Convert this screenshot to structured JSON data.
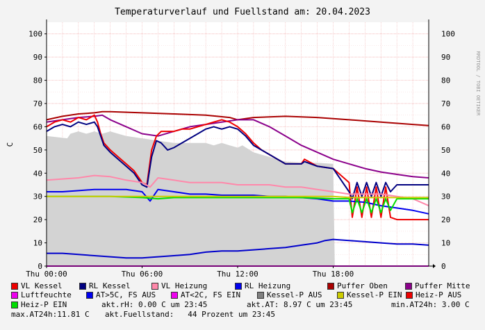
{
  "title": "Temperaturverlauf und Fuellstand am: 20.04.2023",
  "watermark": "RRDTOOL / TOBI OETIKER",
  "chart_data": {
    "type": "line",
    "title": "Temperaturverlauf und Fuellstand am: 20.04.2023",
    "ylabel": "C",
    "ylim": [
      0,
      105
    ],
    "xlim": [
      0,
      24
    ],
    "grid": true,
    "y_ticks": [
      0,
      10,
      20,
      30,
      40,
      50,
      60,
      70,
      80,
      90,
      100
    ],
    "x_ticks": [
      {
        "hour": 0,
        "label": "Thu 00:00"
      },
      {
        "hour": 6,
        "label": "Thu 06:00"
      },
      {
        "hour": 12,
        "label": "Thu 12:00"
      },
      {
        "hour": 18,
        "label": "Thu 18:00"
      }
    ],
    "area": {
      "name": "Fuellstand",
      "color": "#d3d3d3",
      "x": [
        0,
        1.3,
        1.5,
        2.0,
        2.5,
        3.0,
        3.5,
        4.0,
        4.5,
        5.0,
        6.0,
        7.0,
        8.0,
        9.0,
        10.0,
        10.5,
        11.0,
        11.5,
        12.0,
        12.3,
        13.0,
        14.0,
        15.0,
        16.0,
        17.0,
        18.0,
        18.1
      ],
      "y": [
        56,
        55,
        57,
        58,
        57,
        58,
        57,
        58,
        57,
        56,
        55,
        54,
        53,
        53,
        53,
        52,
        53,
        52,
        51,
        52,
        49,
        47,
        45,
        44.5,
        44.5,
        44,
        0
      ]
    },
    "series": [
      {
        "name": "Puffer Oben",
        "color": "#aa0000",
        "x": [
          0,
          1,
          2,
          3,
          3.5,
          4,
          6,
          8,
          10,
          11.5,
          12,
          13,
          15,
          17,
          19,
          21,
          23,
          24
        ],
        "y": [
          63,
          64.5,
          65.5,
          66,
          66.5,
          66.5,
          66,
          65.5,
          65,
          64,
          63,
          64,
          64.5,
          64,
          63,
          62,
          61,
          60.5
        ]
      },
      {
        "name": "Puffer Mitte",
        "color": "#8b008b",
        "x": [
          0,
          1,
          2,
          3,
          3.5,
          4,
          5,
          6,
          7,
          8,
          9,
          10,
          11,
          12,
          13,
          14,
          15,
          16,
          17,
          18,
          19,
          20,
          21,
          22,
          23,
          24
        ],
        "y": [
          62,
          63,
          64,
          64.5,
          65,
          63,
          60,
          57,
          56,
          58,
          60,
          61,
          62,
          63,
          63,
          60,
          56,
          52,
          49,
          46,
          44,
          42,
          40.5,
          39.5,
          38.5,
          38
        ]
      },
      {
        "name": "VL Kessel",
        "color": "#ee0000",
        "x": [
          0,
          0.5,
          1,
          1.5,
          2,
          2.5,
          3,
          3.2,
          3.4,
          3.6,
          4,
          4.5,
          5,
          5.5,
          6,
          6.3,
          6.6,
          6.9,
          7.2,
          7.6,
          8,
          8.5,
          9,
          9.5,
          10,
          10.5,
          11,
          11.5,
          12,
          12.5,
          13,
          13.5,
          14,
          15,
          16,
          16.2,
          17,
          18,
          19,
          19.2,
          19.5,
          19.8,
          20.1,
          20.4,
          20.7,
          21,
          21.3,
          21.6,
          22,
          24
        ],
        "y": [
          60,
          62,
          63,
          62,
          64,
          63,
          65,
          62,
          57,
          53,
          50,
          47,
          44,
          41,
          36,
          35,
          50,
          56,
          58,
          58,
          58,
          59,
          59,
          60,
          61,
          62,
          63,
          62,
          60,
          57,
          53,
          50,
          48,
          44,
          44,
          46,
          43,
          42,
          36,
          21,
          34,
          21,
          34,
          21,
          34,
          21,
          34,
          21,
          20,
          20
        ]
      },
      {
        "name": "RL Kessel",
        "color": "#000080",
        "x": [
          0,
          0.5,
          1,
          1.5,
          2,
          2.5,
          3,
          3.2,
          3.4,
          3.6,
          4,
          4.5,
          5,
          5.5,
          6,
          6.3,
          6.6,
          6.9,
          7.2,
          7.6,
          8,
          8.5,
          9,
          9.5,
          10,
          10.5,
          11,
          11.5,
          12,
          12.5,
          13,
          13.5,
          14,
          15,
          16,
          16.2,
          17,
          18,
          19,
          19.2,
          19.5,
          19.8,
          20.1,
          20.4,
          20.7,
          21,
          21.3,
          21.6,
          22,
          24
        ],
        "y": [
          58,
          60,
          61,
          60,
          62,
          61,
          62,
          60,
          56,
          52,
          49,
          46,
          43,
          40,
          35,
          34,
          47,
          54,
          53,
          50,
          51,
          53,
          55,
          57,
          59,
          60,
          59,
          60,
          59,
          56,
          52,
          50,
          48,
          44,
          44,
          45,
          43,
          42,
          32,
          29,
          36,
          30,
          36,
          30,
          36,
          30,
          36,
          32,
          35,
          35
        ]
      },
      {
        "name": "VL Heizung",
        "color": "#ff88aa",
        "x": [
          0,
          1,
          2,
          3,
          4,
          5,
          6,
          6.5,
          7,
          8,
          9,
          10,
          11,
          12,
          13,
          14,
          15,
          16,
          17,
          18,
          19,
          20,
          21,
          22,
          23,
          24
        ],
        "y": [
          37,
          37.5,
          38,
          39,
          38.5,
          37,
          36,
          34,
          38,
          37,
          36,
          36,
          36,
          35,
          35,
          35,
          34,
          34,
          33,
          32,
          31,
          31,
          31,
          30,
          29,
          26
        ]
      },
      {
        "name": "RL Heizung",
        "color": "#0000ee",
        "x": [
          0,
          1,
          2,
          3,
          4,
          5,
          6,
          6.5,
          7,
          8,
          9,
          10,
          11,
          12,
          13,
          14,
          15,
          16,
          17,
          18,
          19,
          20,
          21,
          22,
          23,
          24
        ],
        "y": [
          32,
          32,
          32.5,
          33,
          33,
          33,
          32,
          28,
          33,
          32,
          31,
          31,
          30.5,
          30.5,
          30.5,
          30,
          30,
          29.5,
          29,
          28,
          28,
          27.5,
          26,
          25,
          24,
          22.5
        ]
      },
      {
        "name": "Heiz-P EIN",
        "color": "#00dd00",
        "x": [
          0,
          2,
          4,
          6,
          7,
          8,
          10,
          12,
          14,
          16,
          18,
          19,
          19.2,
          19.5,
          19.8,
          20.1,
          20.4,
          20.7,
          21,
          21.3,
          21.6,
          22,
          24
        ],
        "y": [
          30,
          30,
          30,
          29.5,
          29,
          29.5,
          29.5,
          29.5,
          29.5,
          29.5,
          29,
          29,
          23,
          29,
          23,
          29,
          23,
          29,
          23,
          29,
          24,
          29,
          29
        ]
      },
      {
        "name": "Kessel-P EIN",
        "color": "#cccc00",
        "x": [
          0,
          18,
          19,
          20,
          21,
          22,
          23,
          24
        ],
        "y": [
          30,
          30,
          29.5,
          29.5,
          29.5,
          29.5,
          29.5,
          29.5
        ]
      },
      {
        "name": "AT",
        "color": "#0000cc",
        "x": [
          0,
          1,
          2,
          3,
          4,
          5,
          6,
          7,
          8,
          9,
          10,
          11,
          12,
          13,
          14,
          15,
          16,
          17,
          17.5,
          18,
          19,
          20,
          21,
          22,
          23,
          24
        ],
        "y": [
          5.5,
          5.5,
          5,
          4.5,
          4,
          3.5,
          3.5,
          4,
          4.5,
          5,
          6,
          6.5,
          6.5,
          7,
          7.5,
          8,
          9,
          10,
          11,
          11.5,
          11,
          10.5,
          10,
          9.5,
          9.5,
          9
        ]
      },
      {
        "name": "Luftfeuchte",
        "color": "#ee00ee",
        "x": [
          0,
          24
        ],
        "y": [
          0,
          0
        ]
      }
    ],
    "legend": [
      {
        "label": "VL Kessel",
        "color": "#ee0000"
      },
      {
        "label": "RL Kessel",
        "color": "#000080"
      },
      {
        "label": "VL Heizung",
        "color": "#ff88aa"
      },
      {
        "label": "RL Heizung",
        "color": "#0000ee"
      },
      {
        "label": "Puffer Oben",
        "color": "#aa0000"
      },
      {
        "label": "Puffer Mitte",
        "color": "#8b008b"
      },
      {
        "label": "Luftfeuchte",
        "color": "#ee00ee"
      },
      {
        "label": "AT>5C, FS AUS",
        "color": "#0000ee"
      },
      {
        "label": "AT<2C, FS EIN",
        "color": "#ee00ee"
      },
      {
        "label": "Kessel-P AUS",
        "color": "#808080"
      },
      {
        "label": "Kessel-P EIN",
        "color": "#cccc00"
      },
      {
        "label": "Heiz-P AUS",
        "color": "#ee0000"
      },
      {
        "label": "Heiz-P EIN",
        "color": "#00dd00"
      }
    ],
    "info": {
      "rh": "akt.rH: 0.00 C um 23:45",
      "at": "akt.AT: 8.97 C um 23:45",
      "min": "min.AT24h: 3.00 C",
      "max": "max.AT24h:11.81 C",
      "fuellstand": "akt.Fuellstand:   44 Prozent um 23:45"
    }
  }
}
